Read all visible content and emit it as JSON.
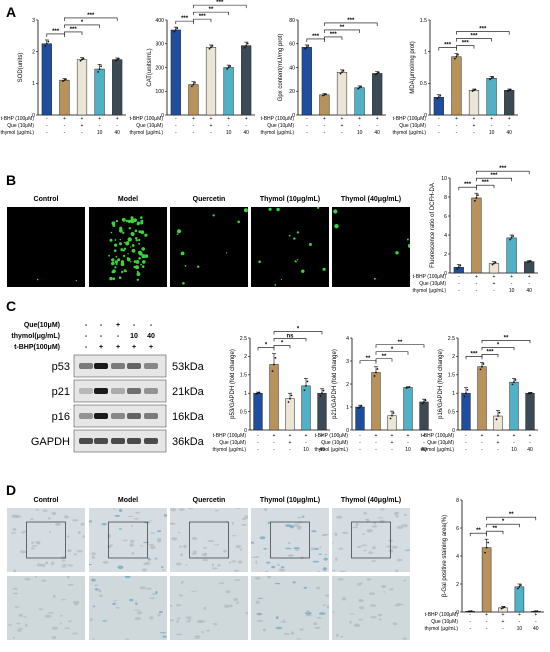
{
  "panels": {
    "A": "A",
    "B": "B",
    "C": "C",
    "D": "D"
  },
  "groups": [
    "Control",
    "Model",
    "Quercetin",
    "Thymol (10μg/mL)",
    "Thymol (40μg/mL)"
  ],
  "conditions": {
    "labels": [
      "t-BHP (100μM)",
      "Que (10μM)",
      "thymol (μg/mL)"
    ],
    "rows": [
      [
        "-",
        "+",
        "+",
        "+",
        "+"
      ],
      [
        "-",
        "-",
        "+",
        "-",
        "-"
      ],
      [
        "-",
        "-",
        "-",
        "10",
        "40"
      ]
    ]
  },
  "colors": {
    "control": "#1f4e9c",
    "model": "#b8925a",
    "quercetin": "#ebe5d6",
    "thymol10": "#4fb0c6",
    "thymol40": "#3c4a55"
  },
  "chart_data": [
    {
      "id": "sod",
      "type": "bar",
      "panel": "A",
      "ylabel": "SOD(units)",
      "ylim": [
        0,
        3
      ],
      "yticks": [
        0,
        1,
        2,
        3
      ],
      "values": [
        2.25,
        1.1,
        1.75,
        1.45,
        1.75
      ],
      "errors": [
        0.12,
        0.05,
        0.06,
        0.15,
        0.05
      ],
      "significance": [
        "***",
        "***",
        "*",
        "***"
      ]
    },
    {
      "id": "cat",
      "type": "bar",
      "panel": "A",
      "ylabel": "CAT(units/mL)",
      "ylim": [
        0,
        400
      ],
      "yticks": [
        0,
        100,
        200,
        300,
        400
      ],
      "values": [
        358,
        128,
        285,
        200,
        292
      ],
      "errors": [
        12,
        12,
        10,
        10,
        15
      ],
      "significance": [
        "***",
        "***",
        "**",
        "***"
      ]
    },
    {
      "id": "gpx",
      "type": "bar",
      "panel": "A",
      "ylabel": "Gpx content(mU/mg prot)",
      "ylim": [
        0,
        80
      ],
      "yticks": [
        0,
        20,
        40,
        60,
        80
      ],
      "values": [
        57,
        17,
        36,
        23,
        35
      ],
      "errors": [
        2,
        1,
        2,
        1.5,
        1.5
      ],
      "significance": [
        "***",
        "***",
        "**",
        "***"
      ]
    },
    {
      "id": "mda",
      "type": "bar",
      "panel": "A",
      "ylabel": "MDA(μmol/mg prot)",
      "ylim": [
        0,
        1.5
      ],
      "yticks": [
        0.0,
        0.5,
        1.0,
        1.5
      ],
      "values": [
        0.28,
        0.92,
        0.39,
        0.58,
        0.39
      ],
      "errors": [
        0.04,
        0.05,
        0.02,
        0.03,
        0.02
      ],
      "significance": [
        "***",
        "***",
        "***",
        "***"
      ]
    },
    {
      "id": "dcfh",
      "type": "bar",
      "panel": "B",
      "ylabel": "Fluorescence ratio of DCFH-DA",
      "ylim": [
        0,
        10
      ],
      "yticks": [
        0,
        2,
        4,
        6,
        8,
        10
      ],
      "values": [
        0.6,
        7.9,
        1.0,
        3.7,
        1.2
      ],
      "errors": [
        0.3,
        0.5,
        0.2,
        0.3,
        0.1
      ],
      "significance": [
        "***",
        "***",
        "***",
        "***"
      ]
    },
    {
      "id": "p53",
      "type": "bar",
      "panel": "C",
      "ylabel": "p53/GAPDH (fold change)",
      "ylim": [
        0,
        2.5
      ],
      "yticks": [
        0.0,
        0.5,
        1.0,
        1.5,
        2.0,
        2.5
      ],
      "values": [
        1.0,
        1.78,
        0.85,
        1.2,
        1.0
      ],
      "errors": [
        0.03,
        0.3,
        0.15,
        0.2,
        0.12
      ],
      "significance": [
        "*",
        "*",
        "ns",
        "*"
      ]
    },
    {
      "id": "p21",
      "type": "bar",
      "panel": "C",
      "ylabel": "p21/GAPDH (fold change)",
      "ylim": [
        0,
        4
      ],
      "yticks": [
        0,
        1,
        2,
        3,
        4
      ],
      "values": [
        1.0,
        2.5,
        0.62,
        1.85,
        1.22
      ],
      "errors": [
        0.08,
        0.25,
        0.2,
        0.03,
        0.12
      ],
      "significance": [
        "**",
        "**",
        "*",
        "**"
      ]
    },
    {
      "id": "p16",
      "type": "bar",
      "panel": "C",
      "ylabel": "p16/GAPDH (fold change)",
      "ylim": [
        0,
        2.5
      ],
      "yticks": [
        0.0,
        0.5,
        1.0,
        1.5,
        2.0,
        2.5
      ],
      "values": [
        1.0,
        1.72,
        0.38,
        1.3,
        1.0
      ],
      "errors": [
        0.15,
        0.12,
        0.15,
        0.1,
        0.02
      ],
      "significance": [
        "***",
        "***",
        "*",
        "**"
      ]
    },
    {
      "id": "bgal",
      "type": "bar",
      "panel": "D",
      "ylabel": "β-Gal positive staining area(%)",
      "ylim": [
        0,
        8
      ],
      "yticks": [
        0,
        2,
        4,
        6,
        8
      ],
      "values": [
        0.05,
        4.6,
        0.3,
        1.8,
        0.05
      ],
      "errors": [
        0.02,
        0.6,
        0.1,
        0.2,
        0.02
      ],
      "significance": [
        "**",
        "**",
        "*",
        "**"
      ]
    }
  ],
  "western": {
    "treatments": {
      "labels": [
        "Que(10μM)",
        "thymol(μg/mL)",
        "t-BHP(100μM)"
      ],
      "rows": [
        [
          "-",
          "-",
          "+",
          "-",
          "-"
        ],
        [
          "-",
          "-",
          "-",
          "10",
          "40"
        ],
        [
          "-",
          "+",
          "+",
          "+",
          "+"
        ]
      ]
    },
    "bands": [
      {
        "protein": "p53",
        "mw": "53kDa"
      },
      {
        "protein": "p21",
        "mw": "21kDa"
      },
      {
        "protein": "p16",
        "mw": "16kDa"
      },
      {
        "protein": "GAPDH",
        "mw": "36kDa"
      }
    ]
  }
}
